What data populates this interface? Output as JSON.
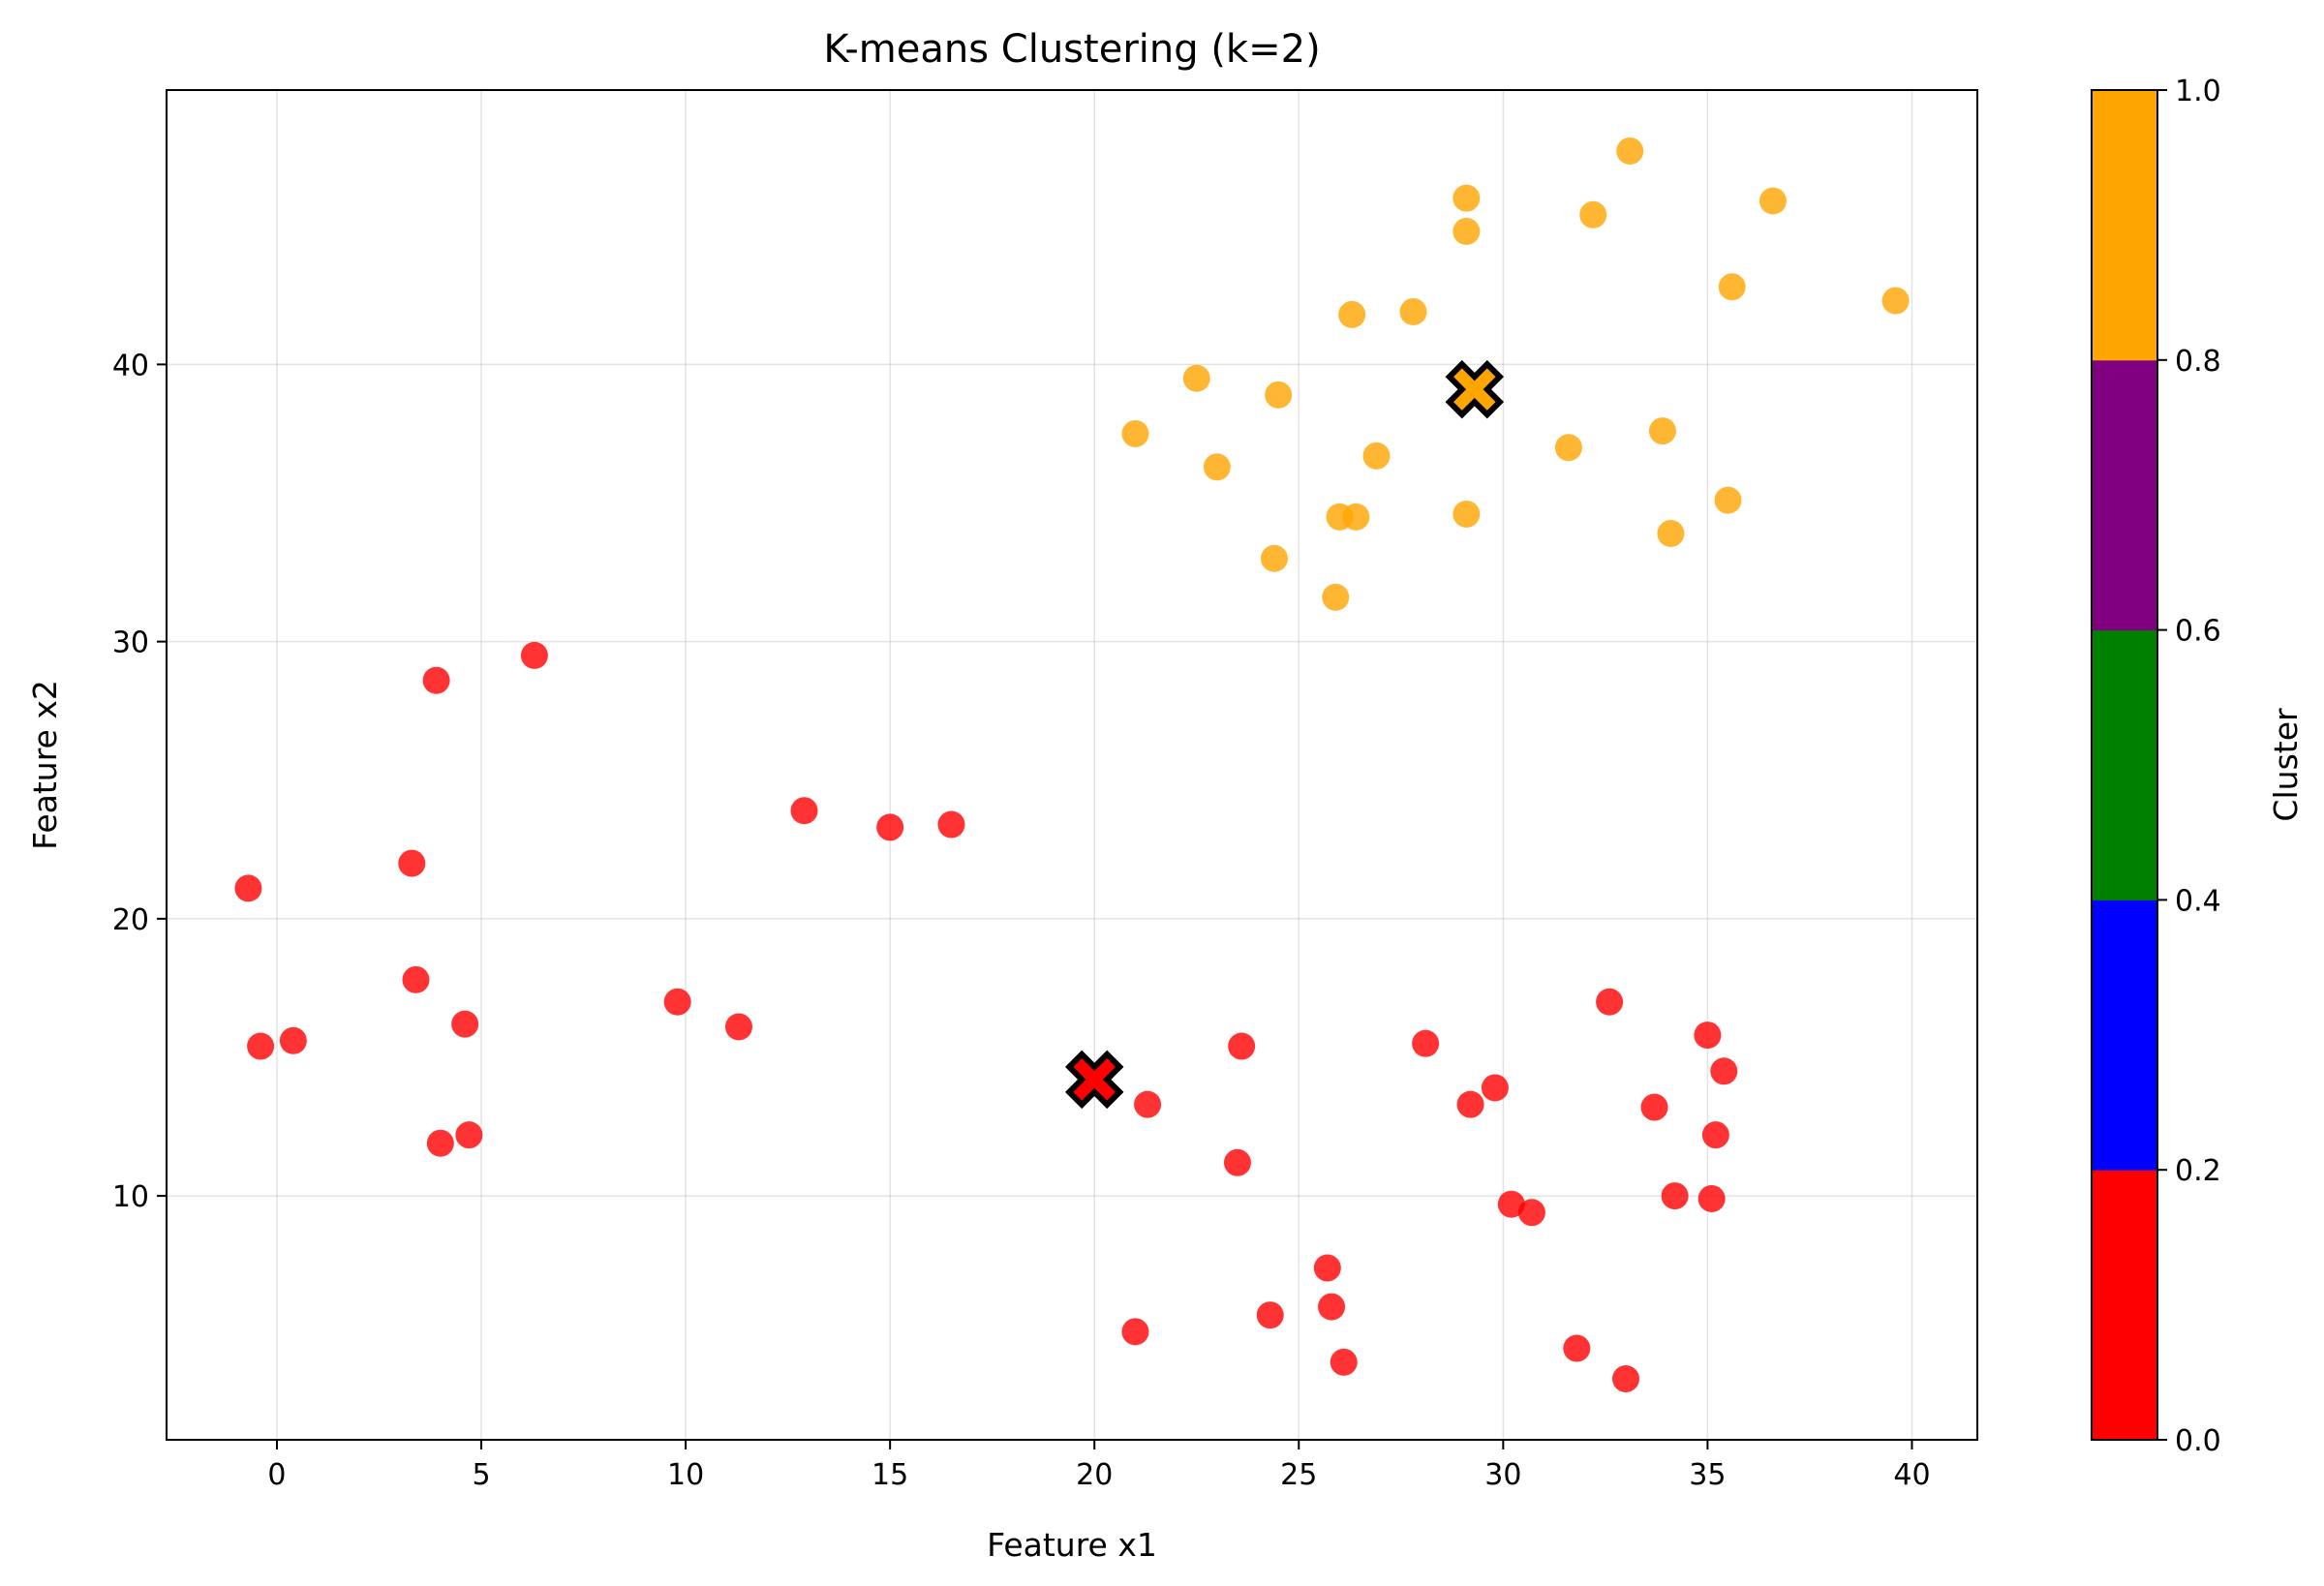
{
  "chart_data": {
    "type": "scatter",
    "title": "K-means Clustering (k=2)",
    "xlabel": "Feature x1",
    "ylabel": "Feature x2",
    "xlim": [
      -2.7,
      41.6
    ],
    "ylim": [
      1.2,
      49.9
    ],
    "xticks": [
      0,
      5,
      10,
      15,
      20,
      25,
      30,
      35,
      40
    ],
    "yticks": [
      10,
      20,
      30,
      40
    ],
    "grid": true,
    "colors": {
      "cluster0": "#ff0000",
      "cluster1": "#ffa500"
    },
    "series": [
      {
        "cluster": 0,
        "x": [
          -0.7,
          -0.4,
          0.4,
          3.3,
          3.4,
          3.9,
          4.0,
          4.6,
          4.7,
          6.3,
          9.8,
          11.3,
          12.9,
          15.0,
          16.5,
          21.0,
          21.3,
          23.5,
          23.6,
          24.3,
          25.7,
          25.8,
          26.1,
          28.1,
          29.2,
          29.8,
          30.2,
          30.7,
          31.8,
          32.6,
          33.0,
          33.7,
          34.2,
          35.0,
          35.1,
          35.2,
          35.4
        ],
        "y": [
          21.1,
          15.4,
          15.6,
          22.0,
          17.8,
          28.6,
          11.9,
          16.2,
          12.2,
          29.5,
          17.0,
          16.1,
          23.9,
          23.3,
          23.4,
          5.1,
          13.3,
          11.2,
          15.4,
          5.7,
          7.4,
          6.0,
          4.0,
          15.5,
          13.3,
          13.9,
          9.7,
          9.4,
          4.5,
          17.0,
          3.4,
          13.2,
          10.0,
          15.8,
          9.9,
          12.2,
          14.5
        ]
      },
      {
        "cluster": 1,
        "x": [
          21.0,
          22.5,
          23.0,
          24.4,
          24.5,
          25.9,
          26.0,
          26.3,
          26.4,
          26.9,
          27.8,
          29.1,
          29.1,
          29.1,
          31.6,
          32.2,
          33.1,
          33.9,
          34.1,
          35.5,
          35.6,
          36.6,
          39.6
        ],
        "y": [
          37.5,
          39.5,
          36.3,
          33.0,
          38.9,
          31.6,
          34.5,
          41.8,
          34.5,
          36.7,
          41.9,
          46.0,
          44.8,
          34.6,
          37.0,
          45.4,
          47.7,
          37.6,
          33.9,
          35.1,
          42.8,
          45.9,
          42.3
        ]
      }
    ],
    "centroids": [
      {
        "cluster": 0,
        "x": 20.0,
        "y": 14.2
      },
      {
        "cluster": 1,
        "x": 29.3,
        "y": 39.1
      }
    ],
    "colorbar": {
      "label": "Cluster",
      "ticks": [
        "0.0",
        "0.2",
        "0.4",
        "0.6",
        "0.8",
        "1.0"
      ],
      "colors": [
        "#ff0000",
        "#0000ff",
        "#008000",
        "#800080",
        "#ffa500"
      ]
    }
  }
}
